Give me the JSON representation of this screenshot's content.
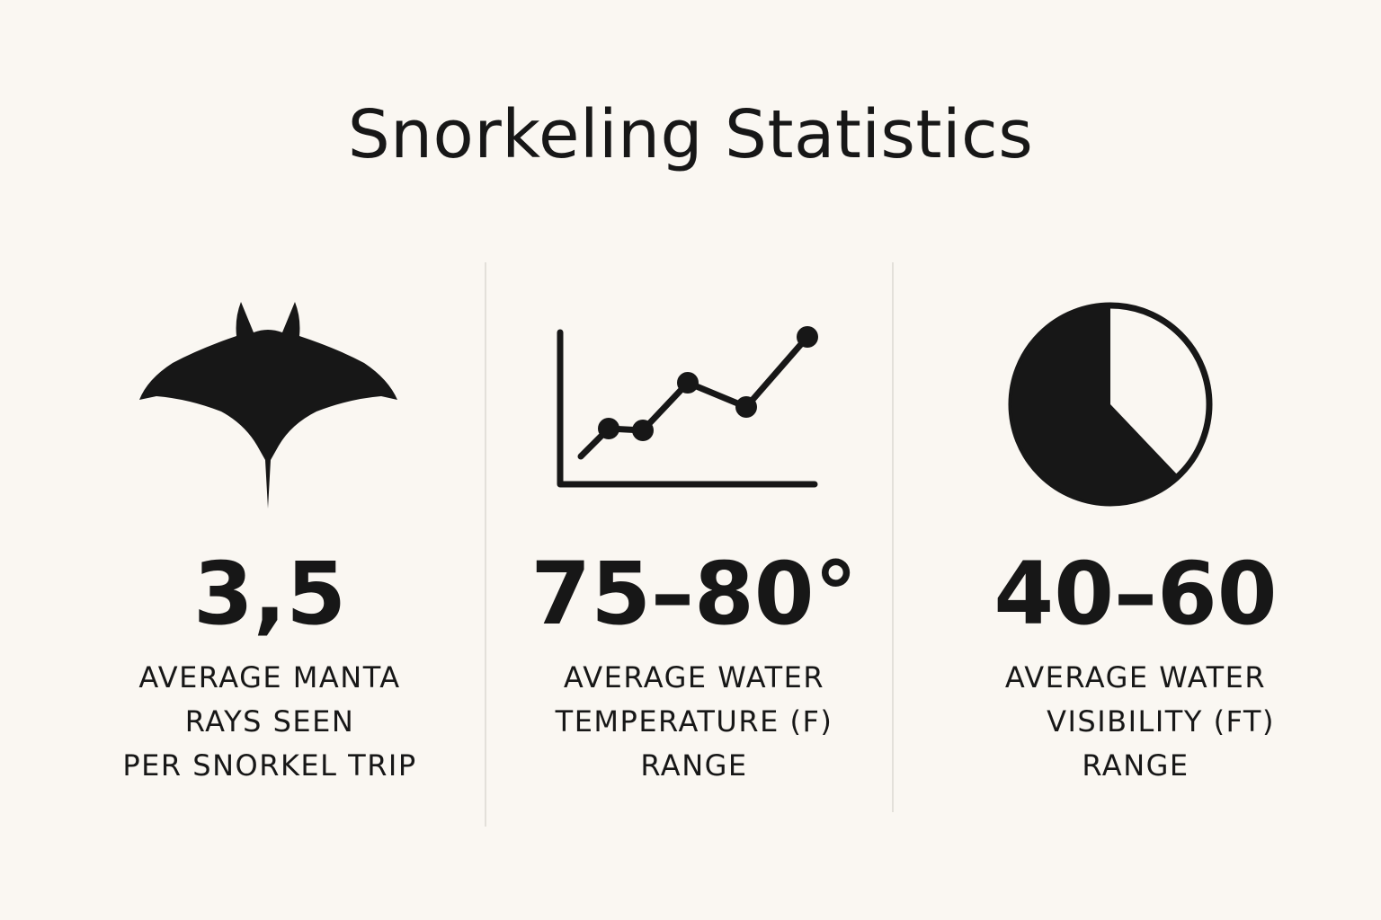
{
  "title": "Snorkeling Statistics",
  "icons": {
    "manta": "manta-ray-icon",
    "line_chart": "line-chart-icon",
    "pie_chart": "pie-chart-icon"
  },
  "stats": [
    {
      "value": "3,5",
      "label_lines": [
        "AVERAGE MANTA",
        "RAYS SEEN",
        "PER SNORKEL TRIP"
      ]
    },
    {
      "value": "75–80°",
      "label_lines": [
        "AVERAGE  WATER",
        "TEMPERATURE (F)",
        "RANGE"
      ]
    },
    {
      "value": "40–60",
      "label_lines": [
        "AVERAGE WATER",
        "VISIBILITY (FT)",
        "RANGE"
      ]
    }
  ],
  "colors": {
    "background": "#faf7f2",
    "ink": "#171717",
    "divider": "#e3e0da"
  }
}
